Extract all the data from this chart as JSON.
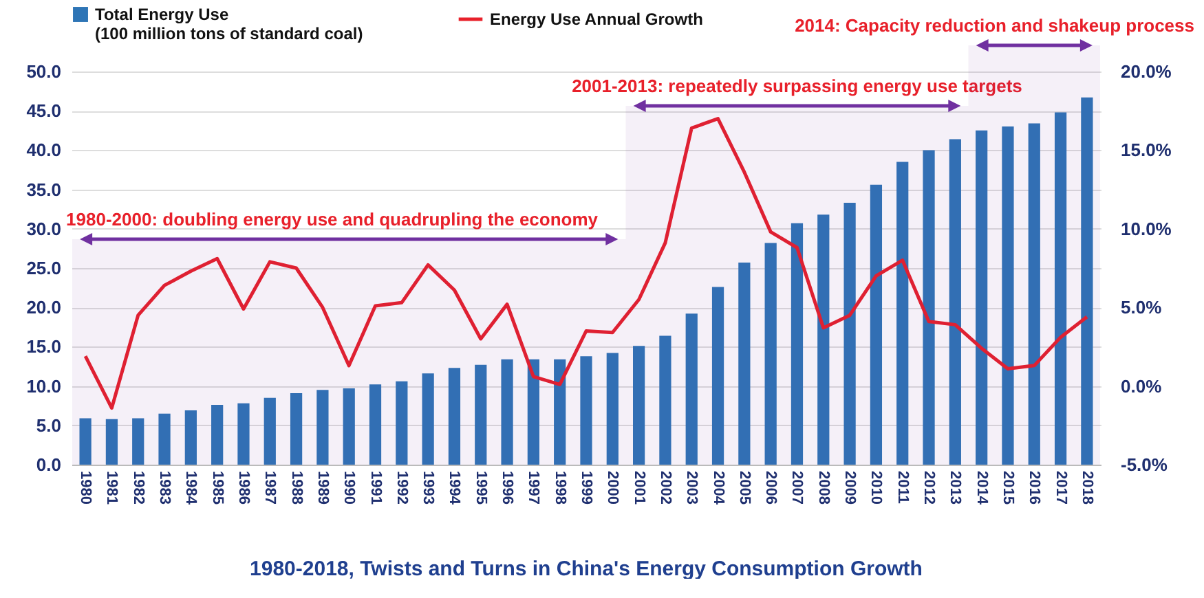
{
  "chart_data": {
    "type": "bar",
    "title": "1980-2018, Twists and Turns in China's Energy Consumption Growth",
    "categories": [
      "1980",
      "1981",
      "1982",
      "1983",
      "1984",
      "1985",
      "1986",
      "1987",
      "1988",
      "1989",
      "1990",
      "1991",
      "1992",
      "1993",
      "1994",
      "1995",
      "1996",
      "1997",
      "1998",
      "1999",
      "2000",
      "2001",
      "2002",
      "2003",
      "2004",
      "2005",
      "2006",
      "2007",
      "2008",
      "2009",
      "2010",
      "2011",
      "2012",
      "2013",
      "2014",
      "2015",
      "2016",
      "2017",
      "2018"
    ],
    "series": [
      {
        "name": "Total Energy Use (100 million tons of standard coal)",
        "type": "bar",
        "color": "#2e75b6",
        "values": [
          5.9,
          5.8,
          5.9,
          6.5,
          6.9,
          7.6,
          7.8,
          8.5,
          9.1,
          9.5,
          9.7,
          10.2,
          10.6,
          11.6,
          12.3,
          12.7,
          13.4,
          13.4,
          13.4,
          13.8,
          14.2,
          15.1,
          16.4,
          19.2,
          22.6,
          25.7,
          28.2,
          30.7,
          31.8,
          33.3,
          35.6,
          38.5,
          40.0,
          41.4,
          42.5,
          43.0,
          43.4,
          44.8,
          46.7
        ]
      },
      {
        "name": "Energy Use Annual Growth",
        "type": "line",
        "axis": "y2",
        "color": "#e8202a",
        "values": [
          1.9,
          -1.4,
          4.5,
          6.4,
          7.3,
          8.1,
          4.9,
          7.9,
          7.5,
          5.0,
          1.3,
          5.1,
          5.3,
          7.7,
          6.1,
          3.0,
          5.2,
          0.6,
          0.1,
          3.5,
          3.4,
          5.5,
          9.1,
          16.4,
          17.0,
          13.6,
          9.8,
          8.8,
          3.7,
          4.5,
          7.0,
          8.0,
          4.1,
          3.9,
          2.4,
          1.1,
          1.3,
          3.1,
          4.4
        ]
      }
    ],
    "ylim": [
      0,
      50
    ],
    "yticks": [
      {
        "value": 0,
        "label": "0.0"
      },
      {
        "value": 5,
        "label": "5.0"
      },
      {
        "value": 10,
        "label": "10.0"
      },
      {
        "value": 15,
        "label": "15.0"
      },
      {
        "value": 20,
        "label": "20.0"
      },
      {
        "value": 25,
        "label": "25.0"
      },
      {
        "value": 30,
        "label": "30.0"
      },
      {
        "value": 35,
        "label": "35.0"
      },
      {
        "value": 40,
        "label": "40.0"
      },
      {
        "value": 45,
        "label": "45.0"
      },
      {
        "value": 50,
        "label": "50.0"
      }
    ],
    "y2lim": [
      -5,
      20
    ],
    "y2ticks": [
      {
        "value": -5,
        "label": "-5.0%"
      },
      {
        "value": 0,
        "label": "0.0%"
      },
      {
        "value": 5,
        "label": "5.0%"
      },
      {
        "value": 10,
        "label": "10.0%"
      },
      {
        "value": 15,
        "label": "15.0%"
      },
      {
        "value": 20,
        "label": "20.0%"
      }
    ],
    "bands": [
      {
        "axis": "x",
        "from": "1980",
        "to": "2000",
        "label": "1980-2000: doubling energy use and quadrupling the economy",
        "color": "#7030a0"
      },
      {
        "axis": "x",
        "from": "2001",
        "to": "2013",
        "label": "2001-2013: repeatedly surpassing energy use targets",
        "color": "#7030a0"
      },
      {
        "axis": "x",
        "from": "2014",
        "to": "2018",
        "label": "2014: Capacity reduction and shakeup process",
        "color": "#7030a0"
      }
    ],
    "grid": "y",
    "legend": "top"
  }
}
